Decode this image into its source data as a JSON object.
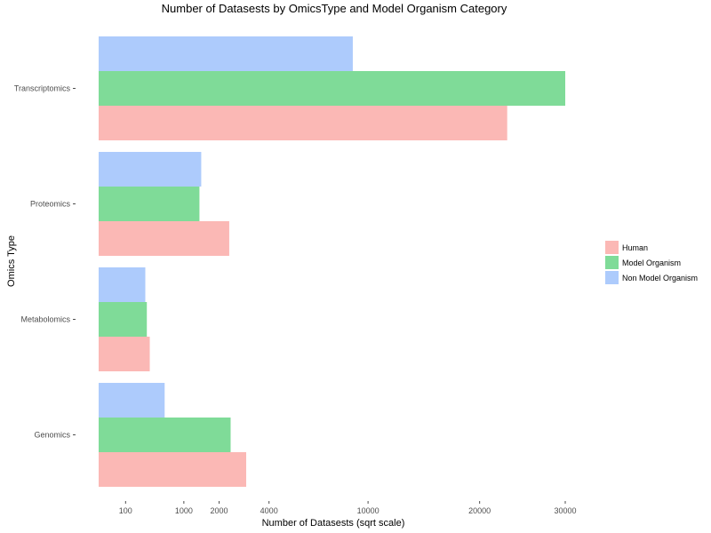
{
  "chart_data": {
    "type": "bar",
    "orientation": "horizontal",
    "title": "Number of Datasests by OmicsType and Model Organism Category",
    "xlabel": "Number of Datasests (sqrt scale)",
    "ylabel": "Omics Type",
    "x_scale": "sqrt",
    "xlim": [
      0,
      31000
    ],
    "x_ticks": [
      100,
      1000,
      2000,
      4000,
      10000,
      20000,
      30000
    ],
    "categories": [
      "Transcriptomics",
      "Proteomics",
      "Metabolomics",
      "Genomics"
    ],
    "series": [
      {
        "name": "Non Model Organism",
        "color": "#adcbfc",
        "values": [
          8900,
          1450,
          300,
          600
        ]
      },
      {
        "name": "Model Organism",
        "color": "#7fdb98",
        "values": [
          30000,
          1400,
          320,
          2400
        ]
      },
      {
        "name": "Human",
        "color": "#fbb8b5",
        "values": [
          23000,
          2350,
          360,
          3000
        ]
      }
    ],
    "legend": {
      "position": "right",
      "entries": [
        "Human",
        "Model Organism",
        "Non Model Organism"
      ]
    },
    "grid": false
  }
}
